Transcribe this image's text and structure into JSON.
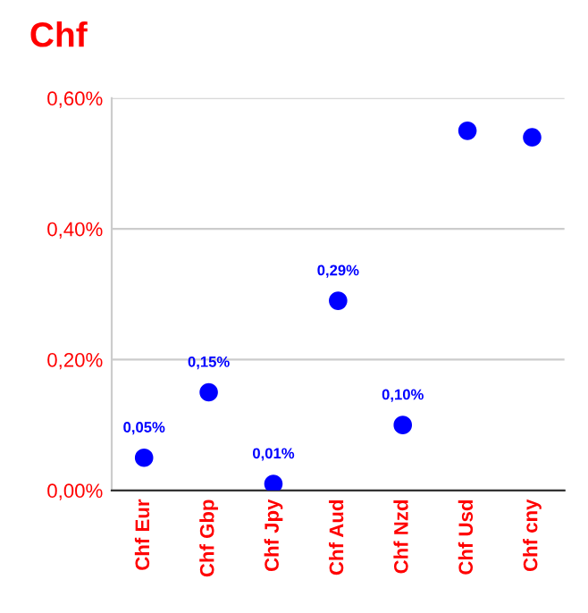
{
  "chart_data": {
    "type": "scatter",
    "title": "Chf",
    "categories": [
      "Chf Eur",
      "Chf Gbp",
      "Chf Jpy",
      "Chf Aud",
      "Chf Nzd",
      "Chf Usd",
      "Chf cny"
    ],
    "series": [
      {
        "color": "#0000ff",
        "values": [
          0.05,
          0.15,
          0.01,
          0.29,
          0.1,
          0.55,
          0.54
        ],
        "value_labels": [
          "0,05%",
          "0,15%",
          "0,01%",
          "0,29%",
          "0,10%",
          null,
          null
        ]
      }
    ],
    "ylim": [
      0,
      0.6
    ],
    "yticks": [
      {
        "value": 0,
        "label": "0,00%"
      },
      {
        "value": 0.2,
        "label": "0,20%"
      },
      {
        "value": 0.4,
        "label": "0,40%"
      },
      {
        "value": 0.6,
        "label": "0,60%"
      }
    ],
    "grid": "y",
    "legend": false,
    "marker": "circle"
  }
}
